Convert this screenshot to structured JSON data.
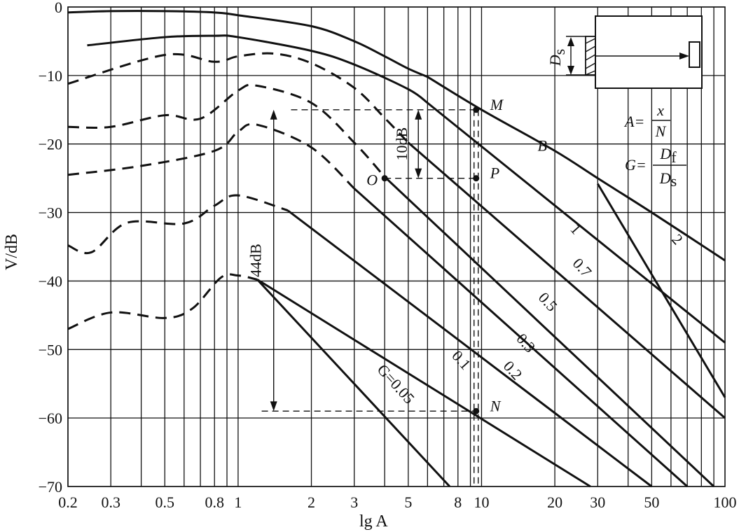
{
  "chart_data": {
    "type": "line",
    "title": "",
    "xlabel": "lg A",
    "ylabel": "V/dB",
    "x_scale": "log",
    "xlim": [
      0.2,
      100
    ],
    "ylim": [
      -70,
      0
    ],
    "x_ticks": [
      {
        "value": 0.2,
        "label": "0.2"
      },
      {
        "value": 0.3,
        "label": "0.3"
      },
      {
        "value": 0.5,
        "label": "0.5"
      },
      {
        "value": 0.8,
        "label": "0.8"
      },
      {
        "value": 1,
        "label": "1"
      },
      {
        "value": 2,
        "label": "2"
      },
      {
        "value": 3,
        "label": "3"
      },
      {
        "value": 5,
        "label": "5"
      },
      {
        "value": 8,
        "label": "8"
      },
      {
        "value": 10,
        "label": "10"
      },
      {
        "value": 20,
        "label": "20"
      },
      {
        "value": 30,
        "label": "30"
      },
      {
        "value": 50,
        "label": "50"
      },
      {
        "value": 100,
        "label": "100"
      }
    ],
    "y_ticks": [
      {
        "value": 0,
        "label": "0"
      },
      {
        "value": -10,
        "label": "−10"
      },
      {
        "value": -20,
        "label": "−20"
      },
      {
        "value": -30,
        "label": "−30"
      },
      {
        "value": -40,
        "label": "−40"
      },
      {
        "value": -50,
        "label": "−50"
      },
      {
        "value": -60,
        "label": "−60"
      },
      {
        "value": -70,
        "label": "−70"
      }
    ],
    "grid": true,
    "series": [
      {
        "name": "B",
        "style": "solid",
        "x": [
          6,
          10,
          20,
          30,
          50,
          100
        ],
        "y": [
          -10.2,
          -15,
          -21,
          -25,
          -30,
          -37
        ]
      },
      {
        "name": "2",
        "style": "solid",
        "x": [
          30,
          100
        ],
        "y": [
          -25.8,
          -57
        ]
      },
      {
        "name": "1",
        "style": "solid",
        "x": [
          0.24,
          0.5,
          0.8,
          1,
          2,
          3,
          5,
          6
        ],
        "y": [
          -5.6,
          -4.4,
          -4.2,
          -4.4,
          -6.4,
          -8.4,
          -12.0,
          -14.0
        ],
        "tail": {
          "x": [
            6,
            100
          ],
          "y": [
            -14,
            -49
          ]
        }
      },
      {
        "name": "0.7",
        "style": "solid",
        "x": [
          0.2,
          0.5,
          0.8,
          1,
          1.4,
          2,
          3,
          4,
          5
        ],
        "y": [
          -11.2,
          -7.0,
          -8.0,
          -7.2,
          -6.8,
          -8.2,
          -11.8,
          -16.2,
          -19.8
        ],
        "tail": {
          "x": [
            5,
            100
          ],
          "y": [
            -19.8,
            -60
          ]
        }
      },
      {
        "name": "0.5",
        "style": "solid",
        "x": [
          0.2,
          0.3,
          0.5,
          0.7,
          1,
          1.2,
          2,
          3,
          4
        ],
        "y": [
          -17.5,
          -17.5,
          -15.8,
          -16.3,
          -12.2,
          -11.5,
          -14.0,
          -19.8,
          -24.8
        ],
        "tail": {
          "x": [
            4,
            90
          ],
          "y": [
            -24.8,
            -70
          ]
        }
      },
      {
        "name": "0.3",
        "style": "solid",
        "x": [
          0.2,
          0.4,
          0.8,
          1,
          1.2,
          2,
          3
        ],
        "y": [
          -24.5,
          -23.2,
          -21.0,
          -18.2,
          -17.2,
          -20.5,
          -26.5
        ],
        "tail": {
          "x": [
            3,
            70
          ],
          "y": [
            -26.5,
            -70
          ]
        }
      },
      {
        "name": "0.2",
        "style": "solid",
        "x": [
          0.2,
          0.25,
          0.35,
          0.6,
          0.8,
          1,
          1.6
        ],
        "y": [
          -34.8,
          -35.8,
          -31.5,
          -31.6,
          -29.0,
          -27.5,
          -29.7
        ],
        "tail": {
          "x": [
            1.6,
            50
          ],
          "y": [
            -29.7,
            -70
          ]
        }
      },
      {
        "name": "0.1",
        "style": "solid",
        "x": [
          0.2,
          0.3,
          0.5,
          0.65,
          0.85,
          1,
          1.2
        ],
        "y": [
          -47.0,
          -44.6,
          -45.4,
          -44.0,
          -39.5,
          -39.2,
          -39.8
        ],
        "tail": {
          "x": [
            1.2,
            28
          ],
          "y": [
            -39.8,
            -70
          ]
        }
      },
      {
        "name": "G=0.05",
        "style": "solid",
        "x": [
          1.2
        ],
        "y": [
          -39.8
        ],
        "tail": {
          "x": [
            1.2,
            7.4
          ],
          "y": [
            -39.8,
            -70
          ]
        }
      }
    ],
    "annotations": [
      {
        "text": "M",
        "x": 9.5,
        "y": -15
      },
      {
        "text": "P",
        "x": 9.5,
        "y": -25
      },
      {
        "text": "O",
        "x": 4,
        "y": -25
      },
      {
        "text": "N",
        "x": 9.5,
        "y": -59
      },
      {
        "text": "10dB"
      },
      {
        "text": "44dB"
      }
    ],
    "formulas": {
      "a_lhs": "A=",
      "a_num": "x",
      "a_den": "N",
      "g_lhs": "G=",
      "g_num": "D",
      "g_num_sub": "f",
      "g_den": "D",
      "g_den_sub": "s"
    },
    "inset_label": "D",
    "inset_label_sub": "s"
  }
}
